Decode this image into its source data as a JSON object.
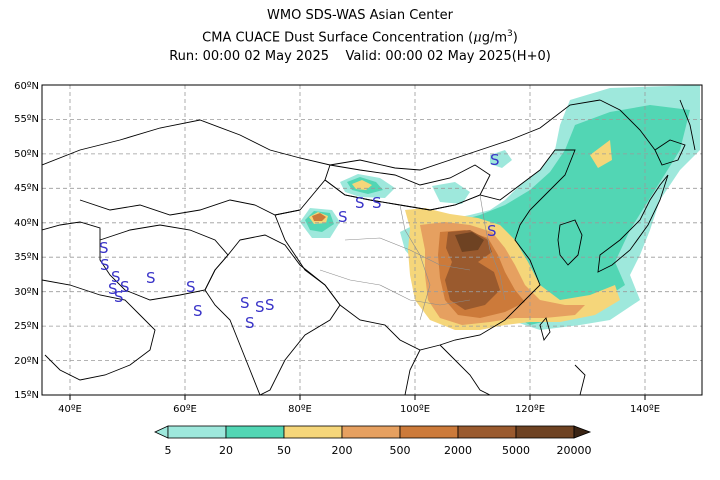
{
  "header": {
    "line1": "WMO SDS-WAS Asian Center",
    "line2_prefix": "CMA CUACE Dust Surface Concentration (",
    "line2_unit_mu": "μ",
    "line2_unit_rest": "g/m",
    "line2_unit_exp": "3",
    "line2_suffix": ")",
    "line3": "Run: 00:00 02 May 2025    Valid: 00:00 02 May 2025(H+0)"
  },
  "map": {
    "lon_range": [
      35,
      150
    ],
    "lat_range": [
      15,
      60
    ],
    "lon_ticks": [
      "40ºE",
      "60ºE",
      "80ºE",
      "100ºE",
      "120ºE",
      "140ºE"
    ],
    "lat_ticks": [
      "15ºN",
      "20ºN",
      "25ºN",
      "30ºN",
      "35ºN",
      "40ºN",
      "45ºN",
      "50ºN",
      "55ºN",
      "60ºN"
    ],
    "grid": true,
    "station_symbol": "S",
    "station_color": "#3a34c8"
  },
  "colorbar": {
    "labels": [
      "5",
      "20",
      "50",
      "200",
      "500",
      "2000",
      "5000",
      "20000"
    ],
    "colors": [
      "#9ee8dc",
      "#52d6b4",
      "#f5d67a",
      "#e6a060",
      "#cc7a3a",
      "#9a5a2e",
      "#6e4222",
      "#3a2414"
    ]
  }
}
